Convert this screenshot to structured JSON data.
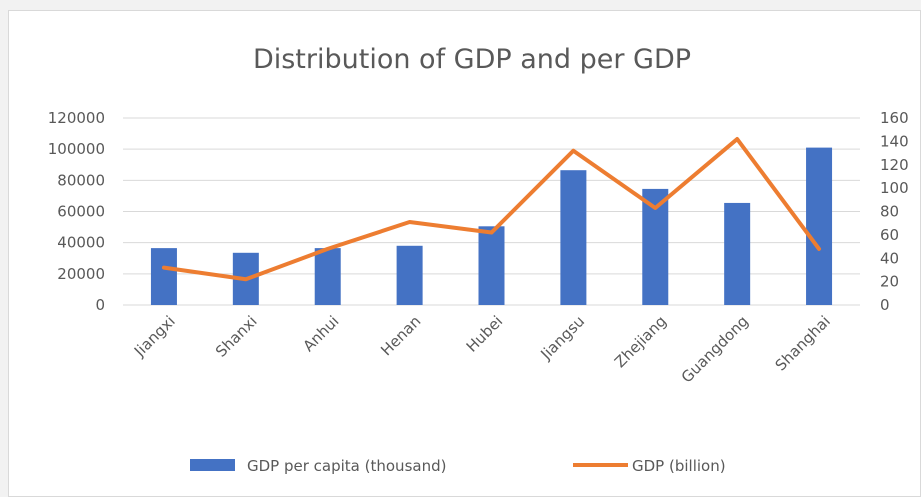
{
  "chart_data": {
    "type": "bar",
    "title": "Distribution of GDP and per GDP",
    "categories": [
      "Jiangxi",
      "Shanxi",
      "Anhui",
      "Henan",
      "Hubei",
      "Jiangsu",
      "Zhejiang",
      "Guangdong",
      "Shanghai"
    ],
    "series": [
      {
        "name": "GDP per capita (thousand)",
        "type": "bar",
        "axis": "left",
        "color": "#4472c4",
        "values": [
          36500,
          33500,
          36500,
          38000,
          50500,
          86500,
          74500,
          65500,
          101000
        ]
      },
      {
        "name": "GDP (billion)",
        "type": "line",
        "axis": "right",
        "color": "#ed7d31",
        "values": [
          32,
          22,
          48,
          71,
          62,
          132,
          83,
          142,
          48
        ]
      }
    ],
    "y_left": {
      "min": 0,
      "max": 120000,
      "step": 20000,
      "ticks": [
        "0",
        "20000",
        "40000",
        "60000",
        "80000",
        "100000",
        "120000"
      ]
    },
    "y_right": {
      "min": 0,
      "max": 160,
      "step": 20,
      "ticks": [
        "0",
        "20",
        "40",
        "60",
        "80",
        "100",
        "120",
        "140",
        "160"
      ]
    },
    "grid": true,
    "legend_position": "bottom"
  }
}
